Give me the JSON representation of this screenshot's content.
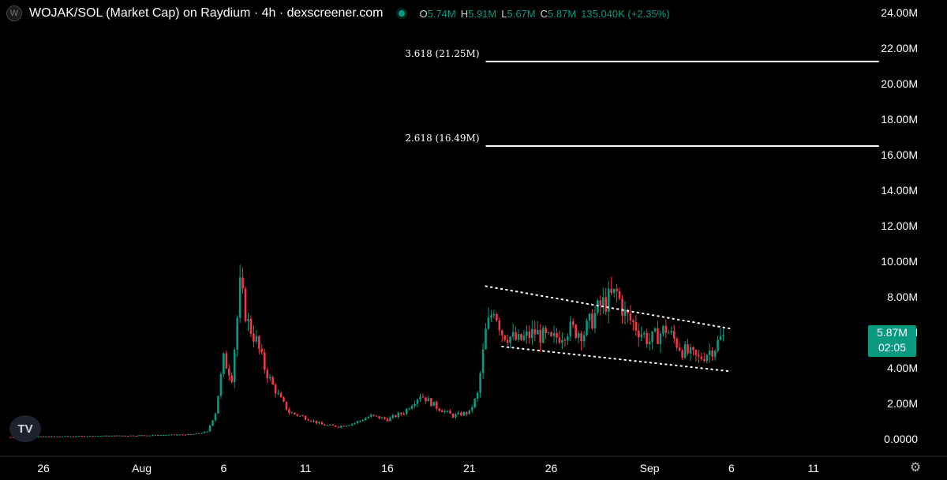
{
  "header": {
    "logo_letter": "W",
    "title": "WOJAK/SOL (Market Cap) on Raydium · 4h · dexscreener.com",
    "ohlc": {
      "o_label": "O",
      "o_value": "5.74M",
      "h_label": "H",
      "h_value": "5.91M",
      "l_label": "L",
      "l_value": "5.67M",
      "c_label": "C",
      "c_value": "5.87M",
      "change": "135.040K (+2.35%)"
    }
  },
  "price_tag": {
    "value": "5.87M",
    "countdown": "02:05"
  },
  "watermark": "TV",
  "colors": {
    "up": "#089981",
    "down": "#f23645",
    "background": "#000000",
    "text": "#d1d4dc"
  },
  "chart_data": {
    "type": "candlestick",
    "y_unit": "market cap (M)",
    "ylim": [
      0,
      24
    ],
    "y_ticks": [
      "0.0000",
      "2.00M",
      "4.00M",
      "6.00M",
      "8.00M",
      "10.00M",
      "12.00M",
      "14.00M",
      "16.00M",
      "18.00M",
      "20.00M",
      "22.00M",
      "24.00M"
    ],
    "y_tick_values": [
      0,
      2,
      4,
      6,
      8,
      10,
      12,
      14,
      16,
      18,
      20,
      22,
      24
    ],
    "x_ticks": [
      "26",
      "Aug",
      "6",
      "11",
      "16",
      "21",
      "26",
      "Sep",
      "6",
      "11"
    ],
    "x_tick_dates": [
      "2024-07-26",
      "2024-08-01",
      "2024-08-06",
      "2024-08-11",
      "2024-08-16",
      "2024-08-21",
      "2024-08-26",
      "2024-09-01",
      "2024-09-06",
      "2024-09-11"
    ],
    "close_path": [
      [
        "2024-07-24",
        0.1
      ],
      [
        "2024-07-28",
        0.15
      ],
      [
        "2024-08-01",
        0.2
      ],
      [
        "2024-08-04",
        0.25
      ],
      [
        "2024-08-05",
        0.4
      ],
      [
        "2024-08-05T12",
        1.5
      ],
      [
        "2024-08-06",
        4.5
      ],
      [
        "2024-08-06T12",
        3.5
      ],
      [
        "2024-08-07",
        8.5
      ],
      [
        "2024-08-07T12",
        6.5
      ],
      [
        "2024-08-08",
        5.5
      ],
      [
        "2024-08-08T12",
        4.0
      ],
      [
        "2024-08-09",
        3.0
      ],
      [
        "2024-08-09T12",
        2.2
      ],
      [
        "2024-08-10",
        1.5
      ],
      [
        "2024-08-11",
        1.2
      ],
      [
        "2024-08-12",
        0.8
      ],
      [
        "2024-08-13",
        0.7
      ],
      [
        "2024-08-14",
        0.9
      ],
      [
        "2024-08-15",
        1.3
      ],
      [
        "2024-08-16",
        1.1
      ],
      [
        "2024-08-17",
        1.5
      ],
      [
        "2024-08-18",
        2.5
      ],
      [
        "2024-08-19",
        1.8
      ],
      [
        "2024-08-20",
        1.3
      ],
      [
        "2024-08-21",
        1.5
      ],
      [
        "2024-08-21T12",
        2.5
      ],
      [
        "2024-08-22",
        6.0
      ],
      [
        "2024-08-22T12",
        7.5
      ],
      [
        "2024-08-23",
        6.0
      ],
      [
        "2024-08-24",
        5.5
      ],
      [
        "2024-08-25",
        6.0
      ],
      [
        "2024-08-26",
        5.5
      ],
      [
        "2024-08-27",
        6.2
      ],
      [
        "2024-08-28",
        6.0
      ],
      [
        "2024-08-29",
        7.5
      ],
      [
        "2024-08-30",
        8.2
      ],
      [
        "2024-08-30T12",
        7.0
      ],
      [
        "2024-08-31",
        6.5
      ],
      [
        "2024-09-01",
        5.5
      ],
      [
        "2024-09-02",
        6.2
      ],
      [
        "2024-09-03",
        5.0
      ],
      [
        "2024-09-04",
        4.5
      ],
      [
        "2024-09-05",
        5.2
      ],
      [
        "2024-09-05T12",
        5.87
      ]
    ],
    "candle_interval": "4h",
    "fib_levels": [
      {
        "label": "3.618 (21.25M)",
        "value": 21.25,
        "start": "2024-08-22",
        "end": "2024-09-15"
      },
      {
        "label": "2.618 (16.49M)",
        "value": 16.49,
        "start": "2024-08-22",
        "end": "2024-09-15"
      }
    ],
    "trendlines": [
      {
        "style": "dotted",
        "from": [
          "2024-08-22",
          8.6
        ],
        "to": [
          "2024-09-06",
          6.2
        ]
      },
      {
        "style": "dotted",
        "from": [
          "2024-08-23",
          5.2
        ],
        "to": [
          "2024-09-06",
          3.8
        ]
      }
    ],
    "last_price": 5.87
  }
}
